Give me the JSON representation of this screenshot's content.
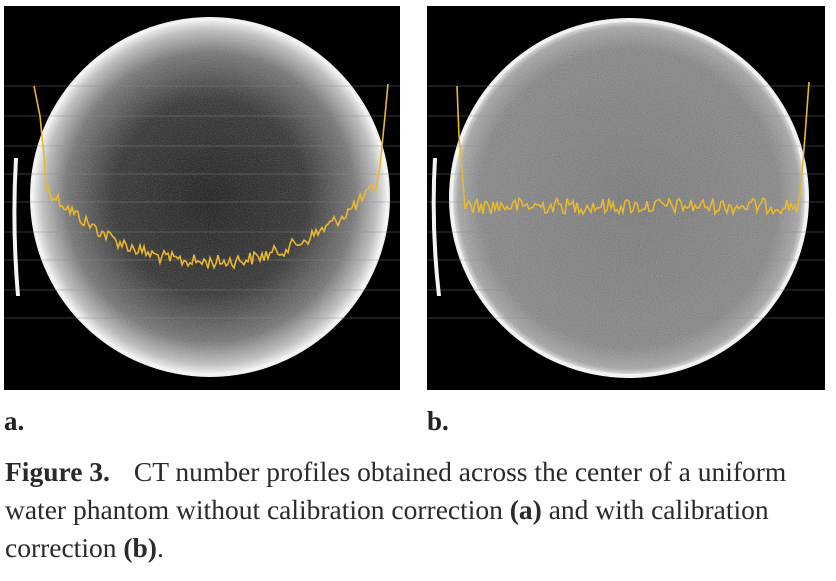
{
  "panels": [
    {
      "id": "a",
      "label": "a.",
      "profile": "cupped",
      "colors": {
        "background": "#000000",
        "phantom_rim": "#f2f2f2",
        "profile": "#e8b830",
        "gridlines": "#8a8a8a"
      }
    },
    {
      "id": "b",
      "label": "b.",
      "profile": "flat",
      "colors": {
        "background": "#000000",
        "phantom_rim": "#f2f2f2",
        "profile": "#e8b830",
        "gridlines": "#8a8a8a"
      }
    }
  ],
  "caption": {
    "figure_label": "Figure 3.",
    "text_1": "CT number profiles obtained across the center of a uniform water phantom without calibration correction ",
    "ref_a": "(a)",
    "text_2": " and with calibration correction ",
    "ref_b": "(b)",
    "text_3": "."
  }
}
